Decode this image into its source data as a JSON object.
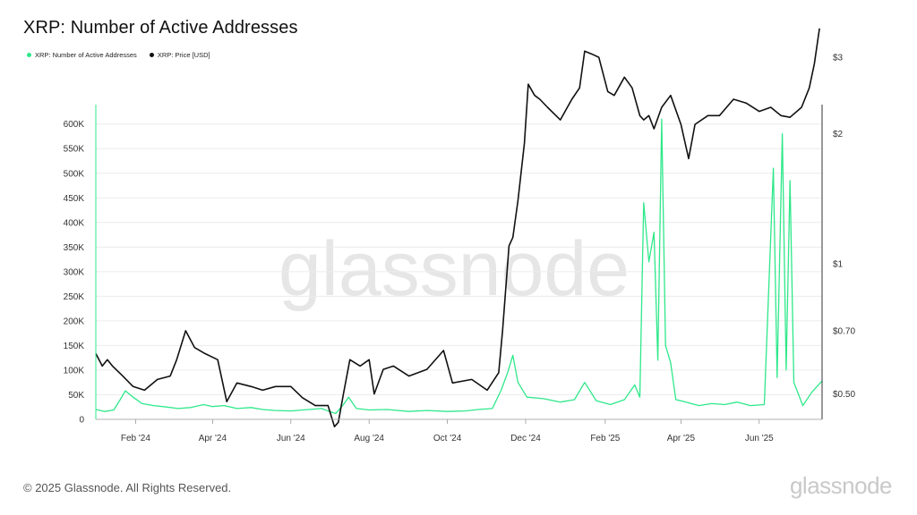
{
  "title": "XRP: Number of Active Addresses",
  "legend": [
    {
      "label": "XRP: Number of Active Addresses",
      "color": "#2ee88a"
    },
    {
      "label": "XRP: Price [USD]",
      "color": "#111111"
    }
  ],
  "watermark": "glassnode",
  "footer": "© 2025 Glassnode. All Rights Reserved.",
  "brand": "glassnode",
  "chart_data": {
    "type": "line",
    "title": "XRP: Number of Active Addresses",
    "y_left": {
      "ticks": [
        "0",
        "50K",
        "100K",
        "150K",
        "200K",
        "250K",
        "300K",
        "350K",
        "400K",
        "450K",
        "500K",
        "550K",
        "600K"
      ],
      "range": [
        0,
        600000
      ]
    },
    "y_right": {
      "scale": "log",
      "ticks": [
        "$0.50",
        "$0.70",
        "$1",
        "$2",
        "$3"
      ]
    },
    "x_ticks": [
      "Feb '24",
      "Apr '24",
      "Jun '24",
      "Aug '24",
      "Oct '24",
      "Dec '24",
      "Feb '25",
      "Apr '25",
      "Jun '25"
    ],
    "x_range": [
      "2024-01-01",
      "2025-07-20"
    ],
    "grid": true,
    "legend_position": "top-left",
    "series": [
      {
        "name": "XRP: Number of Active Addresses",
        "axis": "left",
        "color": "#2ee88a",
        "points": [
          [
            "2024-01-01",
            20000
          ],
          [
            "2024-01-08",
            16000
          ],
          [
            "2024-01-15",
            19000
          ],
          [
            "2024-01-20",
            40000
          ],
          [
            "2024-01-24",
            58000
          ],
          [
            "2024-01-30",
            45000
          ],
          [
            "2024-02-06",
            32000
          ],
          [
            "2024-02-15",
            28000
          ],
          [
            "2024-02-25",
            25000
          ],
          [
            "2024-03-05",
            22000
          ],
          [
            "2024-03-15",
            24000
          ],
          [
            "2024-03-25",
            30000
          ],
          [
            "2024-04-01",
            26000
          ],
          [
            "2024-04-10",
            28000
          ],
          [
            "2024-04-20",
            22000
          ],
          [
            "2024-05-01",
            24000
          ],
          [
            "2024-05-10",
            20000
          ],
          [
            "2024-05-20",
            18000
          ],
          [
            "2024-06-01",
            17000
          ],
          [
            "2024-06-15",
            20000
          ],
          [
            "2024-06-25",
            22000
          ],
          [
            "2024-07-01",
            16000
          ],
          [
            "2024-07-06",
            12000
          ],
          [
            "2024-07-12",
            30000
          ],
          [
            "2024-07-16",
            45000
          ],
          [
            "2024-07-22",
            22000
          ],
          [
            "2024-08-01",
            19000
          ],
          [
            "2024-08-15",
            20000
          ],
          [
            "2024-09-01",
            16000
          ],
          [
            "2024-09-15",
            18000
          ],
          [
            "2024-10-01",
            16000
          ],
          [
            "2024-10-15",
            17000
          ],
          [
            "2024-10-25",
            20000
          ],
          [
            "2024-11-05",
            22000
          ],
          [
            "2024-11-12",
            60000
          ],
          [
            "2024-11-17",
            95000
          ],
          [
            "2024-11-21",
            130000
          ],
          [
            "2024-11-25",
            75000
          ],
          [
            "2024-12-02",
            45000
          ],
          [
            "2024-12-15",
            42000
          ],
          [
            "2024-12-28",
            35000
          ],
          [
            "2025-01-08",
            40000
          ],
          [
            "2025-01-16",
            75000
          ],
          [
            "2025-01-25",
            38000
          ],
          [
            "2025-02-05",
            30000
          ],
          [
            "2025-02-16",
            40000
          ],
          [
            "2025-02-24",
            70000
          ],
          [
            "2025-02-28",
            45000
          ],
          [
            "2025-03-03",
            440000
          ],
          [
            "2025-03-07",
            320000
          ],
          [
            "2025-03-11",
            380000
          ],
          [
            "2025-03-14",
            120000
          ],
          [
            "2025-03-17",
            610000
          ],
          [
            "2025-03-20",
            150000
          ],
          [
            "2025-03-24",
            115000
          ],
          [
            "2025-03-28",
            40000
          ],
          [
            "2025-04-05",
            35000
          ],
          [
            "2025-04-15",
            28000
          ],
          [
            "2025-04-25",
            32000
          ],
          [
            "2025-05-05",
            30000
          ],
          [
            "2025-05-15",
            35000
          ],
          [
            "2025-05-25",
            28000
          ],
          [
            "2025-06-05",
            30000
          ],
          [
            "2025-06-12",
            510000
          ],
          [
            "2025-06-15",
            85000
          ],
          [
            "2025-06-19",
            580000
          ],
          [
            "2025-06-22",
            100000
          ],
          [
            "2025-06-25",
            485000
          ],
          [
            "2025-06-28",
            75000
          ],
          [
            "2025-07-05",
            28000
          ],
          [
            "2025-07-12",
            55000
          ],
          [
            "2025-07-20",
            78000
          ]
        ]
      },
      {
        "name": "XRP: Price [USD]",
        "axis": "right",
        "color": "#111111",
        "points": [
          [
            "2024-01-01",
            0.62
          ],
          [
            "2024-01-06",
            0.58
          ],
          [
            "2024-01-10",
            0.6
          ],
          [
            "2024-01-14",
            0.58
          ],
          [
            "2024-01-22",
            0.55
          ],
          [
            "2024-01-30",
            0.52
          ],
          [
            "2024-02-08",
            0.51
          ],
          [
            "2024-02-18",
            0.54
          ],
          [
            "2024-02-28",
            0.55
          ],
          [
            "2024-03-04",
            0.6
          ],
          [
            "2024-03-11",
            0.7
          ],
          [
            "2024-03-18",
            0.64
          ],
          [
            "2024-03-26",
            0.62
          ],
          [
            "2024-04-05",
            0.6
          ],
          [
            "2024-04-12",
            0.48
          ],
          [
            "2024-04-20",
            0.53
          ],
          [
            "2024-05-01",
            0.52
          ],
          [
            "2024-05-10",
            0.51
          ],
          [
            "2024-05-20",
            0.52
          ],
          [
            "2024-06-01",
            0.52
          ],
          [
            "2024-06-10",
            0.49
          ],
          [
            "2024-06-20",
            0.47
          ],
          [
            "2024-06-30",
            0.47
          ],
          [
            "2024-07-05",
            0.42
          ],
          [
            "2024-07-08",
            0.43
          ],
          [
            "2024-07-12",
            0.5
          ],
          [
            "2024-07-17",
            0.6
          ],
          [
            "2024-07-25",
            0.58
          ],
          [
            "2024-08-01",
            0.6
          ],
          [
            "2024-08-05",
            0.5
          ],
          [
            "2024-08-12",
            0.57
          ],
          [
            "2024-08-20",
            0.58
          ],
          [
            "2024-09-01",
            0.55
          ],
          [
            "2024-09-15",
            0.57
          ],
          [
            "2024-09-28",
            0.63
          ],
          [
            "2024-10-05",
            0.53
          ],
          [
            "2024-10-20",
            0.54
          ],
          [
            "2024-11-01",
            0.51
          ],
          [
            "2024-11-10",
            0.56
          ],
          [
            "2024-11-13",
            0.7
          ],
          [
            "2024-11-18",
            1.1
          ],
          [
            "2024-11-21",
            1.15
          ],
          [
            "2024-11-25",
            1.4
          ],
          [
            "2024-11-30",
            1.9
          ],
          [
            "2024-12-03",
            2.6
          ],
          [
            "2024-12-08",
            2.45
          ],
          [
            "2024-12-12",
            2.4
          ],
          [
            "2024-12-18",
            2.3
          ],
          [
            "2024-12-28",
            2.15
          ],
          [
            "2025-01-06",
            2.4
          ],
          [
            "2025-01-12",
            2.55
          ],
          [
            "2025-01-16",
            3.1
          ],
          [
            "2025-01-22",
            3.05
          ],
          [
            "2025-01-27",
            3.0
          ],
          [
            "2025-02-03",
            2.5
          ],
          [
            "2025-02-08",
            2.45
          ],
          [
            "2025-02-16",
            2.7
          ],
          [
            "2025-02-22",
            2.55
          ],
          [
            "2025-02-28",
            2.2
          ],
          [
            "2025-03-03",
            2.15
          ],
          [
            "2025-03-07",
            2.2
          ],
          [
            "2025-03-11",
            2.05
          ],
          [
            "2025-03-17",
            2.3
          ],
          [
            "2025-03-24",
            2.45
          ],
          [
            "2025-04-01",
            2.1
          ],
          [
            "2025-04-07",
            1.75
          ],
          [
            "2025-04-12",
            2.1
          ],
          [
            "2025-04-22",
            2.2
          ],
          [
            "2025-05-01",
            2.2
          ],
          [
            "2025-05-12",
            2.4
          ],
          [
            "2025-05-22",
            2.35
          ],
          [
            "2025-06-01",
            2.25
          ],
          [
            "2025-06-10",
            2.3
          ],
          [
            "2025-06-18",
            2.2
          ],
          [
            "2025-06-25",
            2.18
          ],
          [
            "2025-07-04",
            2.3
          ],
          [
            "2025-07-10",
            2.55
          ],
          [
            "2025-07-14",
            2.9
          ],
          [
            "2025-07-18",
            3.5
          ]
        ]
      }
    ]
  }
}
